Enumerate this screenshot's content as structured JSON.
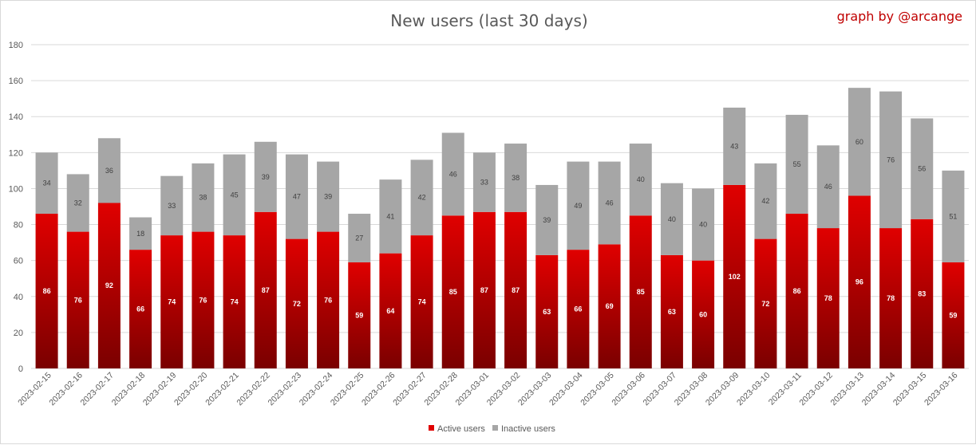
{
  "header": {
    "title": "New users (last 30 days)",
    "credit": "graph by @arcange"
  },
  "colors": {
    "active_top": "#e00000",
    "active_bottom": "#7a0000",
    "inactive": "#a6a6a6",
    "grid": "#d9d9d9",
    "credit": "#c00000"
  },
  "chart_data": {
    "type": "bar",
    "stacked": true,
    "title": "New users (last 30 days)",
    "xlabel": "",
    "ylabel": "",
    "ylim": [
      0,
      180
    ],
    "yticks": [
      0,
      20,
      40,
      60,
      80,
      100,
      120,
      140,
      160,
      180
    ],
    "grid": true,
    "legend_position": "bottom",
    "categories": [
      "2023-02-15",
      "2023-02-16",
      "2023-02-17",
      "2023-02-18",
      "2023-02-19",
      "2023-02-20",
      "2023-02-21",
      "2023-02-22",
      "2023-02-23",
      "2023-02-24",
      "2023-02-25",
      "2023-02-26",
      "2023-02-27",
      "2023-02-28",
      "2023-03-01",
      "2023-03-02",
      "2023-03-03",
      "2023-03-04",
      "2023-03-05",
      "2023-03-06",
      "2023-03-07",
      "2023-03-08",
      "2023-03-09",
      "2023-03-10",
      "2023-03-11",
      "2023-03-12",
      "2023-03-13",
      "2023-03-14",
      "2023-03-15",
      "2023-03-16"
    ],
    "series": [
      {
        "name": "Active users",
        "values": [
          86,
          76,
          92,
          66,
          74,
          76,
          74,
          87,
          72,
          76,
          59,
          64,
          74,
          85,
          87,
          87,
          63,
          66,
          69,
          85,
          63,
          60,
          102,
          72,
          86,
          78,
          96,
          78,
          83,
          59
        ]
      },
      {
        "name": "Inactive users",
        "values": [
          34,
          32,
          36,
          18,
          33,
          38,
          45,
          39,
          47,
          39,
          27,
          41,
          42,
          46,
          33,
          38,
          39,
          49,
          46,
          40,
          40,
          40,
          43,
          42,
          55,
          46,
          60,
          76,
          56,
          51
        ]
      }
    ]
  }
}
